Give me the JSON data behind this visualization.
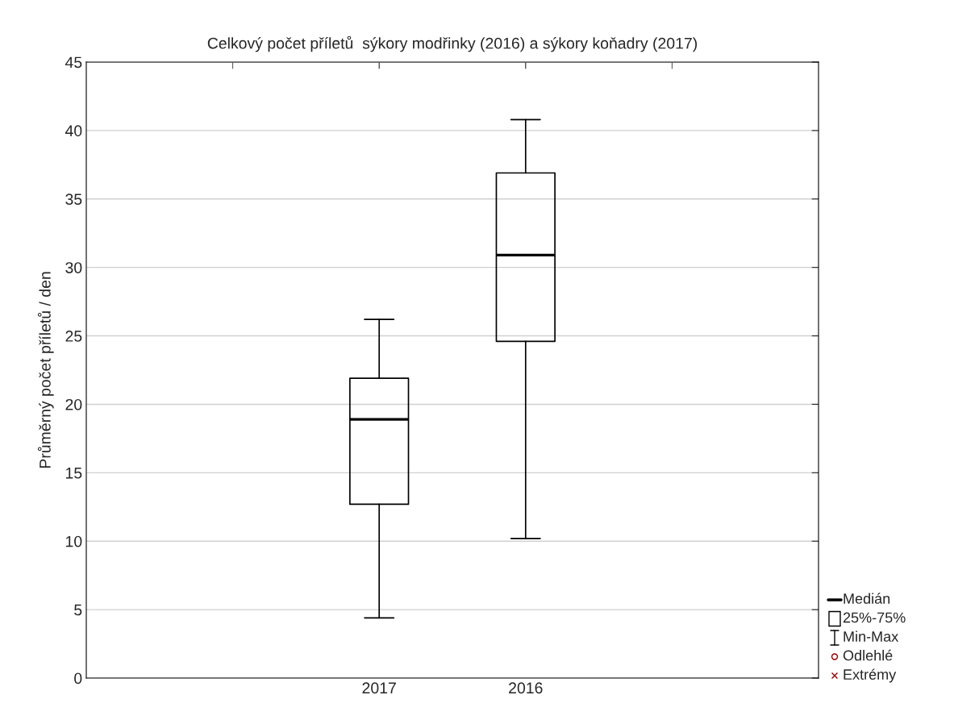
{
  "chart_data": {
    "type": "box",
    "title": "Celkový počet příletů  sýkory modřinky (2016) a sýkory koňadry (2017)",
    "ylabel": "Průměrný počet příletů / den",
    "categories": [
      "2017",
      "2016"
    ],
    "boxes": [
      {
        "low": 4.4,
        "q1": 12.7,
        "median": 18.9,
        "q3": 21.9,
        "high": 26.2
      },
      {
        "low": 10.2,
        "q1": 24.6,
        "median": 30.9,
        "q3": 36.9,
        "high": 40.8
      }
    ],
    "ylim": [
      0,
      45
    ],
    "yticks": [
      0,
      5,
      10,
      15,
      20,
      25,
      30,
      35,
      40,
      45
    ],
    "grid": "y",
    "annotations": [
      "Medián",
      "25%-75%",
      "Min-Max",
      "Odlehlé",
      "Extrémy"
    ]
  }
}
